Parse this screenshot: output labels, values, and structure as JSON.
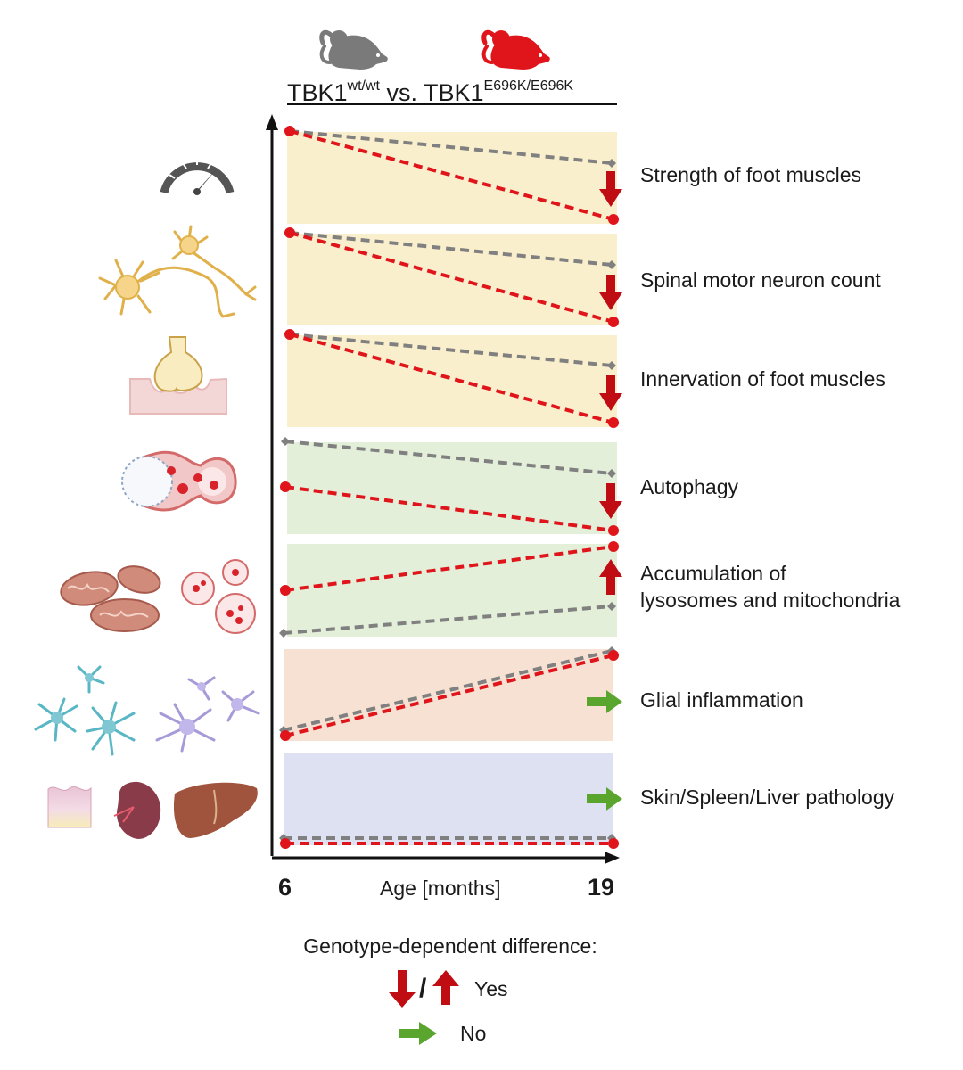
{
  "header": {
    "genotype_wt": "TBK1",
    "genotype_wt_sup": "wt/wt",
    "vs": " vs. ",
    "genotype_mut": "TBK1",
    "genotype_mut_sup": "E696K/E696K",
    "colors": {
      "wt": "#808080",
      "mutant": "#e0151b"
    }
  },
  "axis": {
    "x_start": "6",
    "x_end": "19",
    "x_title": "Age [months]"
  },
  "rows": [
    {
      "label": "Strength of foot muscles",
      "icon": "speedometer-icon",
      "band_color": "#faefcc",
      "effect": "down"
    },
    {
      "label": "Spinal motor neuron count",
      "icon": "neuron-icon",
      "band_color": "#faefcc",
      "effect": "down"
    },
    {
      "label": "Innervation of foot muscles",
      "icon": "neuromuscular-junction-icon",
      "band_color": "#faefcc",
      "effect": "down"
    },
    {
      "label": "Autophagy",
      "icon": "autophagosome-icon",
      "band_color": "#e3efd9",
      "effect": "down"
    },
    {
      "label": "Accumulation of",
      "label2": "lysosomes and mitochondria",
      "icon": "mitochondria-lysosome-icon",
      "band_color": "#e3efd9",
      "effect": "up"
    },
    {
      "label": "Glial inflammation",
      "icon": "glia-icon",
      "band_color": "#f7e1d3",
      "effect": "none"
    },
    {
      "label": "Skin/Spleen/Liver pathology",
      "icon": "organs-icon",
      "band_color": "#dde1f1",
      "effect": "none"
    }
  ],
  "legend": {
    "title": "Genotype-dependent difference:",
    "separator": "/",
    "yes": "Yes",
    "no": "No"
  }
}
